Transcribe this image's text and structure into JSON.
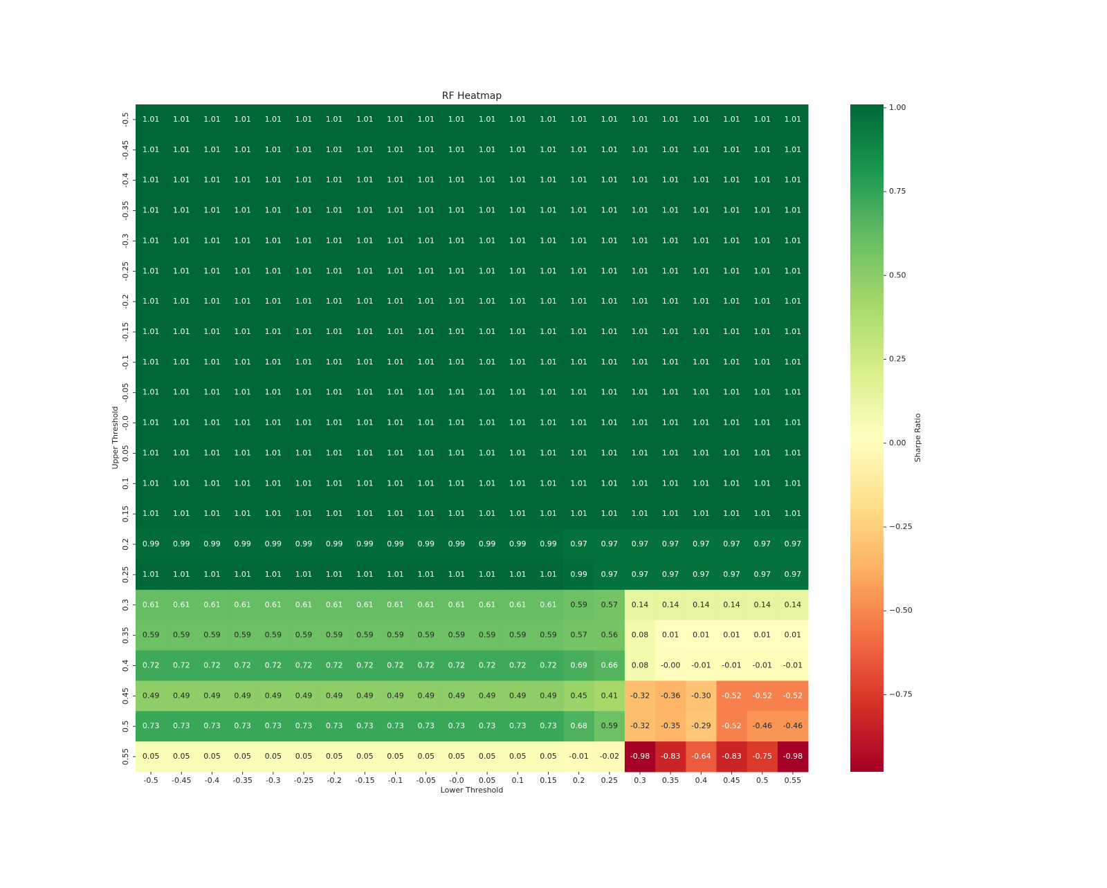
{
  "chart_data": {
    "type": "heatmap",
    "title": "RF Heatmap",
    "x_label": "Lower Threshold",
    "y_label": "Upper Threshold",
    "colorbar_label": "Sharpe Ratio",
    "colormap": "RdYlGn",
    "x_categories": [
      "-0.5",
      "-0.45",
      "-0.4",
      "-0.35",
      "-0.3",
      "-0.25",
      "-0.2",
      "-0.15",
      "-0.1",
      "-0.05",
      "-0.0",
      "0.05",
      "0.1",
      "0.15",
      "0.2",
      "0.25",
      "0.3",
      "0.35",
      "0.4",
      "0.45",
      "0.5",
      "0.55"
    ],
    "y_categories": [
      "-0.5",
      "-0.45",
      "-0.4",
      "-0.35",
      "-0.3",
      "-0.25",
      "-0.2",
      "-0.15",
      "-0.1",
      "-0.05",
      "-0.0",
      "0.05",
      "0.1",
      "0.15",
      "0.2",
      "0.25",
      "0.3",
      "0.35",
      "0.4",
      "0.45",
      "0.5",
      "0.55"
    ],
    "values": [
      [
        1.01,
        1.01,
        1.01,
        1.01,
        1.01,
        1.01,
        1.01,
        1.01,
        1.01,
        1.01,
        1.01,
        1.01,
        1.01,
        1.01,
        1.01,
        1.01,
        1.01,
        1.01,
        1.01,
        1.01,
        1.01,
        1.01
      ],
      [
        1.01,
        1.01,
        1.01,
        1.01,
        1.01,
        1.01,
        1.01,
        1.01,
        1.01,
        1.01,
        1.01,
        1.01,
        1.01,
        1.01,
        1.01,
        1.01,
        1.01,
        1.01,
        1.01,
        1.01,
        1.01,
        1.01
      ],
      [
        1.01,
        1.01,
        1.01,
        1.01,
        1.01,
        1.01,
        1.01,
        1.01,
        1.01,
        1.01,
        1.01,
        1.01,
        1.01,
        1.01,
        1.01,
        1.01,
        1.01,
        1.01,
        1.01,
        1.01,
        1.01,
        1.01
      ],
      [
        1.01,
        1.01,
        1.01,
        1.01,
        1.01,
        1.01,
        1.01,
        1.01,
        1.01,
        1.01,
        1.01,
        1.01,
        1.01,
        1.01,
        1.01,
        1.01,
        1.01,
        1.01,
        1.01,
        1.01,
        1.01,
        1.01
      ],
      [
        1.01,
        1.01,
        1.01,
        1.01,
        1.01,
        1.01,
        1.01,
        1.01,
        1.01,
        1.01,
        1.01,
        1.01,
        1.01,
        1.01,
        1.01,
        1.01,
        1.01,
        1.01,
        1.01,
        1.01,
        1.01,
        1.01
      ],
      [
        1.01,
        1.01,
        1.01,
        1.01,
        1.01,
        1.01,
        1.01,
        1.01,
        1.01,
        1.01,
        1.01,
        1.01,
        1.01,
        1.01,
        1.01,
        1.01,
        1.01,
        1.01,
        1.01,
        1.01,
        1.01,
        1.01
      ],
      [
        1.01,
        1.01,
        1.01,
        1.01,
        1.01,
        1.01,
        1.01,
        1.01,
        1.01,
        1.01,
        1.01,
        1.01,
        1.01,
        1.01,
        1.01,
        1.01,
        1.01,
        1.01,
        1.01,
        1.01,
        1.01,
        1.01
      ],
      [
        1.01,
        1.01,
        1.01,
        1.01,
        1.01,
        1.01,
        1.01,
        1.01,
        1.01,
        1.01,
        1.01,
        1.01,
        1.01,
        1.01,
        1.01,
        1.01,
        1.01,
        1.01,
        1.01,
        1.01,
        1.01,
        1.01
      ],
      [
        1.01,
        1.01,
        1.01,
        1.01,
        1.01,
        1.01,
        1.01,
        1.01,
        1.01,
        1.01,
        1.01,
        1.01,
        1.01,
        1.01,
        1.01,
        1.01,
        1.01,
        1.01,
        1.01,
        1.01,
        1.01,
        1.01
      ],
      [
        1.01,
        1.01,
        1.01,
        1.01,
        1.01,
        1.01,
        1.01,
        1.01,
        1.01,
        1.01,
        1.01,
        1.01,
        1.01,
        1.01,
        1.01,
        1.01,
        1.01,
        1.01,
        1.01,
        1.01,
        1.01,
        1.01
      ],
      [
        1.01,
        1.01,
        1.01,
        1.01,
        1.01,
        1.01,
        1.01,
        1.01,
        1.01,
        1.01,
        1.01,
        1.01,
        1.01,
        1.01,
        1.01,
        1.01,
        1.01,
        1.01,
        1.01,
        1.01,
        1.01,
        1.01
      ],
      [
        1.01,
        1.01,
        1.01,
        1.01,
        1.01,
        1.01,
        1.01,
        1.01,
        1.01,
        1.01,
        1.01,
        1.01,
        1.01,
        1.01,
        1.01,
        1.01,
        1.01,
        1.01,
        1.01,
        1.01,
        1.01,
        1.01
      ],
      [
        1.01,
        1.01,
        1.01,
        1.01,
        1.01,
        1.01,
        1.01,
        1.01,
        1.01,
        1.01,
        1.01,
        1.01,
        1.01,
        1.01,
        1.01,
        1.01,
        1.01,
        1.01,
        1.01,
        1.01,
        1.01,
        1.01
      ],
      [
        1.01,
        1.01,
        1.01,
        1.01,
        1.01,
        1.01,
        1.01,
        1.01,
        1.01,
        1.01,
        1.01,
        1.01,
        1.01,
        1.01,
        1.01,
        1.01,
        1.01,
        1.01,
        1.01,
        1.01,
        1.01,
        1.01
      ],
      [
        0.99,
        0.99,
        0.99,
        0.99,
        0.99,
        0.99,
        0.99,
        0.99,
        0.99,
        0.99,
        0.99,
        0.99,
        0.99,
        0.99,
        0.97,
        0.97,
        0.97,
        0.97,
        0.97,
        0.97,
        0.97,
        0.97
      ],
      [
        1.01,
        1.01,
        1.01,
        1.01,
        1.01,
        1.01,
        1.01,
        1.01,
        1.01,
        1.01,
        1.01,
        1.01,
        1.01,
        1.01,
        0.99,
        0.97,
        0.97,
        0.97,
        0.97,
        0.97,
        0.97,
        0.97
      ],
      [
        0.61,
        0.61,
        0.61,
        0.61,
        0.61,
        0.61,
        0.61,
        0.61,
        0.61,
        0.61,
        0.61,
        0.61,
        0.61,
        0.61,
        0.59,
        0.57,
        0.14,
        0.14,
        0.14,
        0.14,
        0.14,
        0.14
      ],
      [
        0.59,
        0.59,
        0.59,
        0.59,
        0.59,
        0.59,
        0.59,
        0.59,
        0.59,
        0.59,
        0.59,
        0.59,
        0.59,
        0.59,
        0.57,
        0.56,
        0.08,
        0.01,
        0.01,
        0.01,
        0.01,
        0.01
      ],
      [
        0.72,
        0.72,
        0.72,
        0.72,
        0.72,
        0.72,
        0.72,
        0.72,
        0.72,
        0.72,
        0.72,
        0.72,
        0.72,
        0.72,
        0.69,
        0.66,
        0.08,
        -0.0,
        -0.01,
        -0.01,
        -0.01,
        -0.01
      ],
      [
        0.49,
        0.49,
        0.49,
        0.49,
        0.49,
        0.49,
        0.49,
        0.49,
        0.49,
        0.49,
        0.49,
        0.49,
        0.49,
        0.49,
        0.45,
        0.41,
        -0.32,
        -0.36,
        -0.3,
        -0.52,
        -0.52,
        -0.52
      ],
      [
        0.73,
        0.73,
        0.73,
        0.73,
        0.73,
        0.73,
        0.73,
        0.73,
        0.73,
        0.73,
        0.73,
        0.73,
        0.73,
        0.73,
        0.68,
        0.59,
        -0.32,
        -0.35,
        -0.29,
        -0.52,
        -0.46,
        -0.46
      ],
      [
        0.05,
        0.05,
        0.05,
        0.05,
        0.05,
        0.05,
        0.05,
        0.05,
        0.05,
        0.05,
        0.05,
        0.05,
        0.05,
        0.05,
        -0.01,
        -0.02,
        -0.98,
        -0.83,
        -0.64,
        -0.83,
        -0.75,
        -0.98
      ]
    ],
    "value_labels": [
      [
        "1.01",
        "1.01",
        "1.01",
        "1.01",
        "1.01",
        "1.01",
        "1.01",
        "1.01",
        "1.01",
        "1.01",
        "1.01",
        "1.01",
        "1.01",
        "1.01",
        "1.01",
        "1.01",
        "1.01",
        "1.01",
        "1.01",
        "1.01",
        "1.01",
        "1.01"
      ],
      [
        "1.01",
        "1.01",
        "1.01",
        "1.01",
        "1.01",
        "1.01",
        "1.01",
        "1.01",
        "1.01",
        "1.01",
        "1.01",
        "1.01",
        "1.01",
        "1.01",
        "1.01",
        "1.01",
        "1.01",
        "1.01",
        "1.01",
        "1.01",
        "1.01",
        "1.01"
      ],
      [
        "1.01",
        "1.01",
        "1.01",
        "1.01",
        "1.01",
        "1.01",
        "1.01",
        "1.01",
        "1.01",
        "1.01",
        "1.01",
        "1.01",
        "1.01",
        "1.01",
        "1.01",
        "1.01",
        "1.01",
        "1.01",
        "1.01",
        "1.01",
        "1.01",
        "1.01"
      ],
      [
        "1.01",
        "1.01",
        "1.01",
        "1.01",
        "1.01",
        "1.01",
        "1.01",
        "1.01",
        "1.01",
        "1.01",
        "1.01",
        "1.01",
        "1.01",
        "1.01",
        "1.01",
        "1.01",
        "1.01",
        "1.01",
        "1.01",
        "1.01",
        "1.01",
        "1.01"
      ],
      [
        "1.01",
        "1.01",
        "1.01",
        "1.01",
        "1.01",
        "1.01",
        "1.01",
        "1.01",
        "1.01",
        "1.01",
        "1.01",
        "1.01",
        "1.01",
        "1.01",
        "1.01",
        "1.01",
        "1.01",
        "1.01",
        "1.01",
        "1.01",
        "1.01",
        "1.01"
      ],
      [
        "1.01",
        "1.01",
        "1.01",
        "1.01",
        "1.01",
        "1.01",
        "1.01",
        "1.01",
        "1.01",
        "1.01",
        "1.01",
        "1.01",
        "1.01",
        "1.01",
        "1.01",
        "1.01",
        "1.01",
        "1.01",
        "1.01",
        "1.01",
        "1.01",
        "1.01"
      ],
      [
        "1.01",
        "1.01",
        "1.01",
        "1.01",
        "1.01",
        "1.01",
        "1.01",
        "1.01",
        "1.01",
        "1.01",
        "1.01",
        "1.01",
        "1.01",
        "1.01",
        "1.01",
        "1.01",
        "1.01",
        "1.01",
        "1.01",
        "1.01",
        "1.01",
        "1.01"
      ],
      [
        "1.01",
        "1.01",
        "1.01",
        "1.01",
        "1.01",
        "1.01",
        "1.01",
        "1.01",
        "1.01",
        "1.01",
        "1.01",
        "1.01",
        "1.01",
        "1.01",
        "1.01",
        "1.01",
        "1.01",
        "1.01",
        "1.01",
        "1.01",
        "1.01",
        "1.01"
      ],
      [
        "1.01",
        "1.01",
        "1.01",
        "1.01",
        "1.01",
        "1.01",
        "1.01",
        "1.01",
        "1.01",
        "1.01",
        "1.01",
        "1.01",
        "1.01",
        "1.01",
        "1.01",
        "1.01",
        "1.01",
        "1.01",
        "1.01",
        "1.01",
        "1.01",
        "1.01"
      ],
      [
        "1.01",
        "1.01",
        "1.01",
        "1.01",
        "1.01",
        "1.01",
        "1.01",
        "1.01",
        "1.01",
        "1.01",
        "1.01",
        "1.01",
        "1.01",
        "1.01",
        "1.01",
        "1.01",
        "1.01",
        "1.01",
        "1.01",
        "1.01",
        "1.01",
        "1.01"
      ],
      [
        "1.01",
        "1.01",
        "1.01",
        "1.01",
        "1.01",
        "1.01",
        "1.01",
        "1.01",
        "1.01",
        "1.01",
        "1.01",
        "1.01",
        "1.01",
        "1.01",
        "1.01",
        "1.01",
        "1.01",
        "1.01",
        "1.01",
        "1.01",
        "1.01",
        "1.01"
      ],
      [
        "1.01",
        "1.01",
        "1.01",
        "1.01",
        "1.01",
        "1.01",
        "1.01",
        "1.01",
        "1.01",
        "1.01",
        "1.01",
        "1.01",
        "1.01",
        "1.01",
        "1.01",
        "1.01",
        "1.01",
        "1.01",
        "1.01",
        "1.01",
        "1.01",
        "1.01"
      ],
      [
        "1.01",
        "1.01",
        "1.01",
        "1.01",
        "1.01",
        "1.01",
        "1.01",
        "1.01",
        "1.01",
        "1.01",
        "1.01",
        "1.01",
        "1.01",
        "1.01",
        "1.01",
        "1.01",
        "1.01",
        "1.01",
        "1.01",
        "1.01",
        "1.01",
        "1.01"
      ],
      [
        "1.01",
        "1.01",
        "1.01",
        "1.01",
        "1.01",
        "1.01",
        "1.01",
        "1.01",
        "1.01",
        "1.01",
        "1.01",
        "1.01",
        "1.01",
        "1.01",
        "1.01",
        "1.01",
        "1.01",
        "1.01",
        "1.01",
        "1.01",
        "1.01",
        "1.01"
      ],
      [
        "0.99",
        "0.99",
        "0.99",
        "0.99",
        "0.99",
        "0.99",
        "0.99",
        "0.99",
        "0.99",
        "0.99",
        "0.99",
        "0.99",
        "0.99",
        "0.99",
        "0.97",
        "0.97",
        "0.97",
        "0.97",
        "0.97",
        "0.97",
        "0.97",
        "0.97"
      ],
      [
        "1.01",
        "1.01",
        "1.01",
        "1.01",
        "1.01",
        "1.01",
        "1.01",
        "1.01",
        "1.01",
        "1.01",
        "1.01",
        "1.01",
        "1.01",
        "1.01",
        "0.99",
        "0.97",
        "0.97",
        "0.97",
        "0.97",
        "0.97",
        "0.97",
        "0.97"
      ],
      [
        "0.61",
        "0.61",
        "0.61",
        "0.61",
        "0.61",
        "0.61",
        "0.61",
        "0.61",
        "0.61",
        "0.61",
        "0.61",
        "0.61",
        "0.61",
        "0.61",
        "0.59",
        "0.57",
        "0.14",
        "0.14",
        "0.14",
        "0.14",
        "0.14",
        "0.14"
      ],
      [
        "0.59",
        "0.59",
        "0.59",
        "0.59",
        "0.59",
        "0.59",
        "0.59",
        "0.59",
        "0.59",
        "0.59",
        "0.59",
        "0.59",
        "0.59",
        "0.59",
        "0.57",
        "0.56",
        "0.08",
        "0.01",
        "0.01",
        "0.01",
        "0.01",
        "0.01"
      ],
      [
        "0.72",
        "0.72",
        "0.72",
        "0.72",
        "0.72",
        "0.72",
        "0.72",
        "0.72",
        "0.72",
        "0.72",
        "0.72",
        "0.72",
        "0.72",
        "0.72",
        "0.69",
        "0.66",
        "0.08",
        "-0.00",
        "-0.01",
        "-0.01",
        "-0.01",
        "-0.01"
      ],
      [
        "0.49",
        "0.49",
        "0.49",
        "0.49",
        "0.49",
        "0.49",
        "0.49",
        "0.49",
        "0.49",
        "0.49",
        "0.49",
        "0.49",
        "0.49",
        "0.49",
        "0.45",
        "0.41",
        "-0.32",
        "-0.36",
        "-0.30",
        "-0.52",
        "-0.52",
        "-0.52"
      ],
      [
        "0.73",
        "0.73",
        "0.73",
        "0.73",
        "0.73",
        "0.73",
        "0.73",
        "0.73",
        "0.73",
        "0.73",
        "0.73",
        "0.73",
        "0.73",
        "0.73",
        "0.68",
        "0.59",
        "-0.32",
        "-0.35",
        "-0.29",
        "-0.52",
        "-0.46",
        "-0.46"
      ],
      [
        "0.05",
        "0.05",
        "0.05",
        "0.05",
        "0.05",
        "0.05",
        "0.05",
        "0.05",
        "0.05",
        "0.05",
        "0.05",
        "0.05",
        "0.05",
        "0.05",
        "-0.01",
        "-0.02",
        "-0.98",
        "-0.83",
        "-0.64",
        "-0.83",
        "-0.75",
        "-0.98"
      ]
    ],
    "zlim": [
      -0.98,
      1.01
    ],
    "zticks": [
      {
        "value": 1,
        "label": "1.00"
      },
      {
        "value": 0.75,
        "label": "0.75"
      },
      {
        "value": 0.5,
        "label": "0.50"
      },
      {
        "value": 0.25,
        "label": "0.25"
      },
      {
        "value": 0,
        "label": "0.00"
      },
      {
        "value": -0.25,
        "label": "−0.25"
      },
      {
        "value": -0.5,
        "label": "−0.50"
      },
      {
        "value": -0.75,
        "label": "−0.75"
      }
    ]
  }
}
